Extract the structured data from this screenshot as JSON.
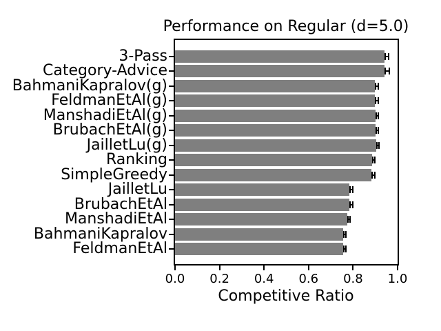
{
  "colors": {
    "bar": "#7f7f7f",
    "error_bar": "#000000",
    "axis": "#000000",
    "background": "#ffffff",
    "text": "#000000"
  },
  "chart_data": {
    "type": "bar",
    "orientation": "horizontal",
    "title": "Performance on Regular (d=5.0)",
    "xlabel": "Competitive Ratio",
    "ylabel": "",
    "xlim": [
      0.0,
      1.0
    ],
    "grid": false,
    "legend": null,
    "xtick_labels": [
      "0.0",
      "0.2",
      "0.4",
      "0.6",
      "0.8",
      "1.0"
    ],
    "xtick_values": [
      0.0,
      0.2,
      0.4,
      0.6,
      0.8,
      1.0
    ],
    "categories": [
      "3-Pass",
      "Category-Advice",
      "BahmaniKapralov(g)",
      "FeldmanEtAl(g)",
      "ManshadiEtAl(g)",
      "BrubachEtAl(g)",
      "JailletLu(g)",
      "Ranking",
      "SimpleGreedy",
      "JailletLu",
      "BrubachEtAl",
      "ManshadiEtAl",
      "BahmaniKapralov",
      "FeldmanEtAl"
    ],
    "values": [
      0.94,
      0.942,
      0.899,
      0.899,
      0.901,
      0.901,
      0.903,
      0.884,
      0.883,
      0.783,
      0.784,
      0.773,
      0.755,
      0.755
    ],
    "errors": [
      0.012,
      0.012,
      0.008,
      0.008,
      0.008,
      0.008,
      0.008,
      0.008,
      0.009,
      0.01,
      0.009,
      0.009,
      0.008,
      0.008
    ]
  }
}
